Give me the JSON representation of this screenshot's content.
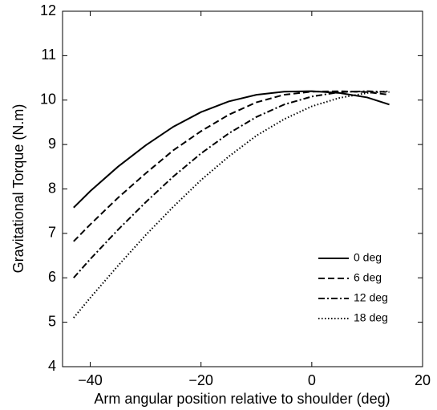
{
  "chart_data": {
    "type": "line",
    "xlabel": "Arm angular position relative to shoulder (deg)",
    "ylabel": "Gravitational Torque (N.m)",
    "x": [
      -43,
      -40,
      -35,
      -30,
      -25,
      -20,
      -15,
      -10,
      -5,
      0,
      5,
      10,
      14
    ],
    "series": [
      {
        "name": "0 deg",
        "color": "#000000",
        "dash": "solid",
        "values": [
          7.58,
          7.95,
          8.5,
          8.98,
          9.4,
          9.73,
          9.97,
          10.12,
          10.19,
          10.2,
          10.16,
          10.06,
          9.9
        ]
      },
      {
        "name": "6 deg",
        "color": "#000000",
        "dash": "dashed",
        "values": [
          6.82,
          7.2,
          7.8,
          8.35,
          8.87,
          9.3,
          9.67,
          9.95,
          10.12,
          10.19,
          10.2,
          10.18,
          10.12
        ]
      },
      {
        "name": "12 deg",
        "color": "#000000",
        "dash": "dashdot",
        "values": [
          6.0,
          6.42,
          7.08,
          7.7,
          8.28,
          8.8,
          9.25,
          9.62,
          9.9,
          10.08,
          10.18,
          10.2,
          10.18
        ]
      },
      {
        "name": "18 deg",
        "color": "#000000",
        "dash": "dotted",
        "values": [
          5.1,
          5.55,
          6.27,
          6.96,
          7.6,
          8.2,
          8.73,
          9.2,
          9.57,
          9.86,
          10.05,
          10.16,
          10.2
        ]
      }
    ],
    "xlim": [
      -45,
      20
    ],
    "xticks": [
      {
        "value": -40,
        "label": "−40"
      },
      {
        "value": -20,
        "label": "−20"
      },
      0,
      20
    ],
    "ylim": [
      4,
      12
    ],
    "yticks": [
      4,
      5,
      6,
      7,
      8,
      9,
      10,
      11,
      12
    ],
    "grid": false,
    "legend": "lower right"
  }
}
